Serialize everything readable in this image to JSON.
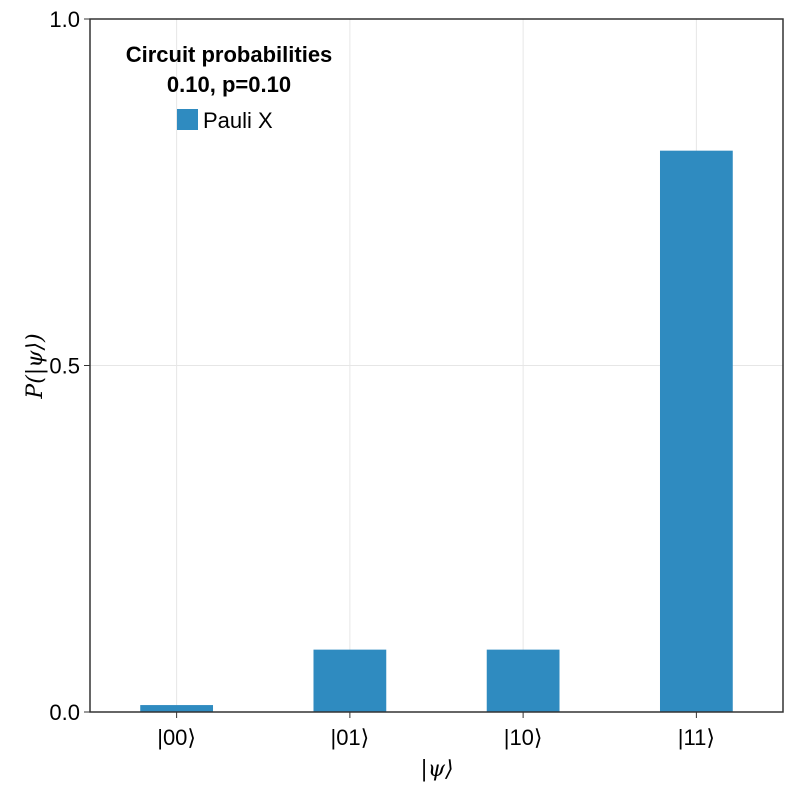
{
  "chart_data": {
    "type": "bar",
    "categories": [
      "|00⟩",
      "|01⟩",
      "|10⟩",
      "|11⟩"
    ],
    "series": [
      {
        "name": "Pauli X",
        "values": [
          0.01,
          0.09,
          0.09,
          0.81
        ]
      }
    ],
    "xlabel": "|ψ⟩",
    "ylabel": "P(|ψ⟩)",
    "ylim": [
      0,
      1.0
    ],
    "yticks": [
      0.0,
      0.5,
      1.0
    ],
    "ytick_labels": [
      "0.0",
      "0.5",
      "1.0"
    ],
    "grid": true,
    "legend": {
      "placement": "top-left",
      "title_lines": [
        "Circuit probabilities",
        "0.10, p=0.10"
      ]
    },
    "colors": {
      "bar": "#2f8bc0",
      "grid": "#e6e6e6",
      "frame": "#333333"
    }
  }
}
